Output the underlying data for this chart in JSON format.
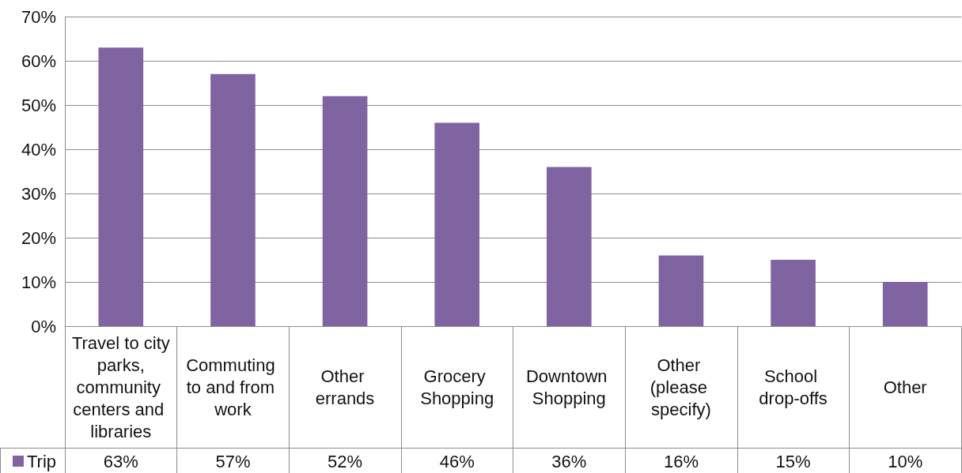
{
  "chart_data": {
    "type": "bar",
    "categories": [
      "Travel to city parks, community centers and libraries",
      "Commuting to and from work",
      "Other errands",
      "Grocery Shopping",
      "Downtown Shopping",
      "Other (please specify)",
      "School drop-offs",
      "Other"
    ],
    "series": [
      {
        "name": "Trip",
        "color": "#8064a2",
        "values": [
          63,
          57,
          52,
          46,
          36,
          16,
          15,
          10
        ],
        "value_labels": [
          "63%",
          "57%",
          "52%",
          "46%",
          "36%",
          "16%",
          "15%",
          "10%"
        ]
      }
    ],
    "ylim": [
      0,
      70
    ],
    "yticks": [
      {
        "value": 0,
        "label": "0%"
      },
      {
        "value": 10,
        "label": "10%"
      },
      {
        "value": 20,
        "label": "20%"
      },
      {
        "value": 30,
        "label": "30%"
      },
      {
        "value": 40,
        "label": "40%"
      },
      {
        "value": 50,
        "label": "50%"
      },
      {
        "value": 60,
        "label": "60%"
      },
      {
        "value": 70,
        "label": "70%"
      }
    ],
    "grid": "y",
    "legend": "bottom left"
  }
}
